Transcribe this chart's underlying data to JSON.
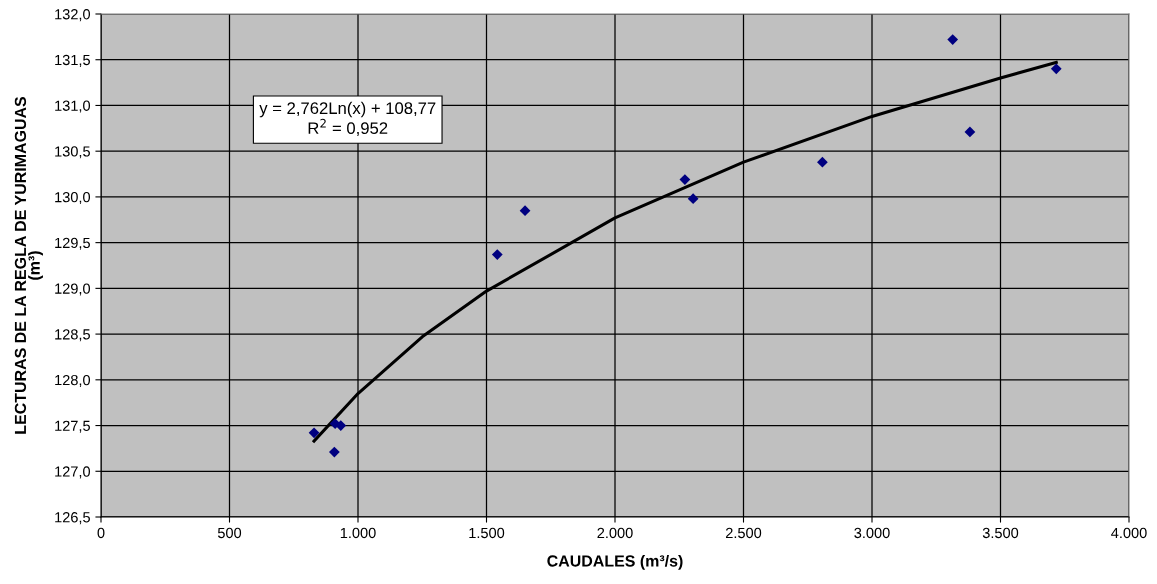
{
  "chart_data": {
    "type": "scatter",
    "xlabel": "CAUDALES (m³/s)",
    "ylabel": "LECTURAS DE LA REGLA DE YURIMAGUAS (m³)",
    "x": [
      829,
      911,
      933,
      908,
      1542,
      1650,
      2272,
      2304,
      2807,
      3314,
      3381,
      3717
    ],
    "series": [
      {
        "color": "#000080",
        "marker": "diamond",
        "values": [
          127.42,
          127.52,
          127.5,
          127.21,
          129.37,
          129.85,
          130.19,
          129.98,
          130.38,
          131.72,
          130.71,
          131.4
        ]
      },
      {
        "type": "line",
        "color": "#000000",
        "line_style": "solid",
        "x": [
          829,
          1000,
          1250,
          1500,
          2000,
          2500,
          3000,
          3500,
          3717
        ],
        "values": [
          127.33,
          127.85,
          128.47,
          128.97,
          129.77,
          130.38,
          130.88,
          131.3,
          131.47
        ]
      }
    ],
    "annotations": [
      "y = 2,762Ln(x) + 108,77\nR$^{2}$ = 0,952"
    ],
    "xlim": [
      0,
      4000
    ],
    "xticks": [
      0,
      500,
      {
        "value": 1000,
        "label": "1.000"
      },
      {
        "value": 1500,
        "label": "1.500"
      },
      {
        "value": 2000,
        "label": "2.000"
      },
      {
        "value": 2500,
        "label": "2.500"
      },
      {
        "value": 3000,
        "label": "3.000"
      },
      {
        "value": 3500,
        "label": "3.500"
      },
      {
        "value": 4000,
        "label": "4.000"
      }
    ],
    "ylim": [
      126.5,
      132.0
    ],
    "yticks": [
      {
        "value": 126.5,
        "label": "126,5"
      },
      {
        "value": 127.0,
        "label": "127,0"
      },
      {
        "value": 127.5,
        "label": "127,5"
      },
      {
        "value": 128.0,
        "label": "128,0"
      },
      {
        "value": 128.5,
        "label": "128,5"
      },
      {
        "value": 129.0,
        "label": "129,0"
      },
      {
        "value": 129.5,
        "label": "129,5"
      },
      {
        "value": 130.0,
        "label": "130,0"
      },
      {
        "value": 130.5,
        "label": "130,5"
      },
      {
        "value": 131.0,
        "label": "131,0"
      },
      {
        "value": 131.5,
        "label": "131,5"
      },
      {
        "value": 132.0,
        "label": "132,0"
      }
    ],
    "grid": true
  }
}
